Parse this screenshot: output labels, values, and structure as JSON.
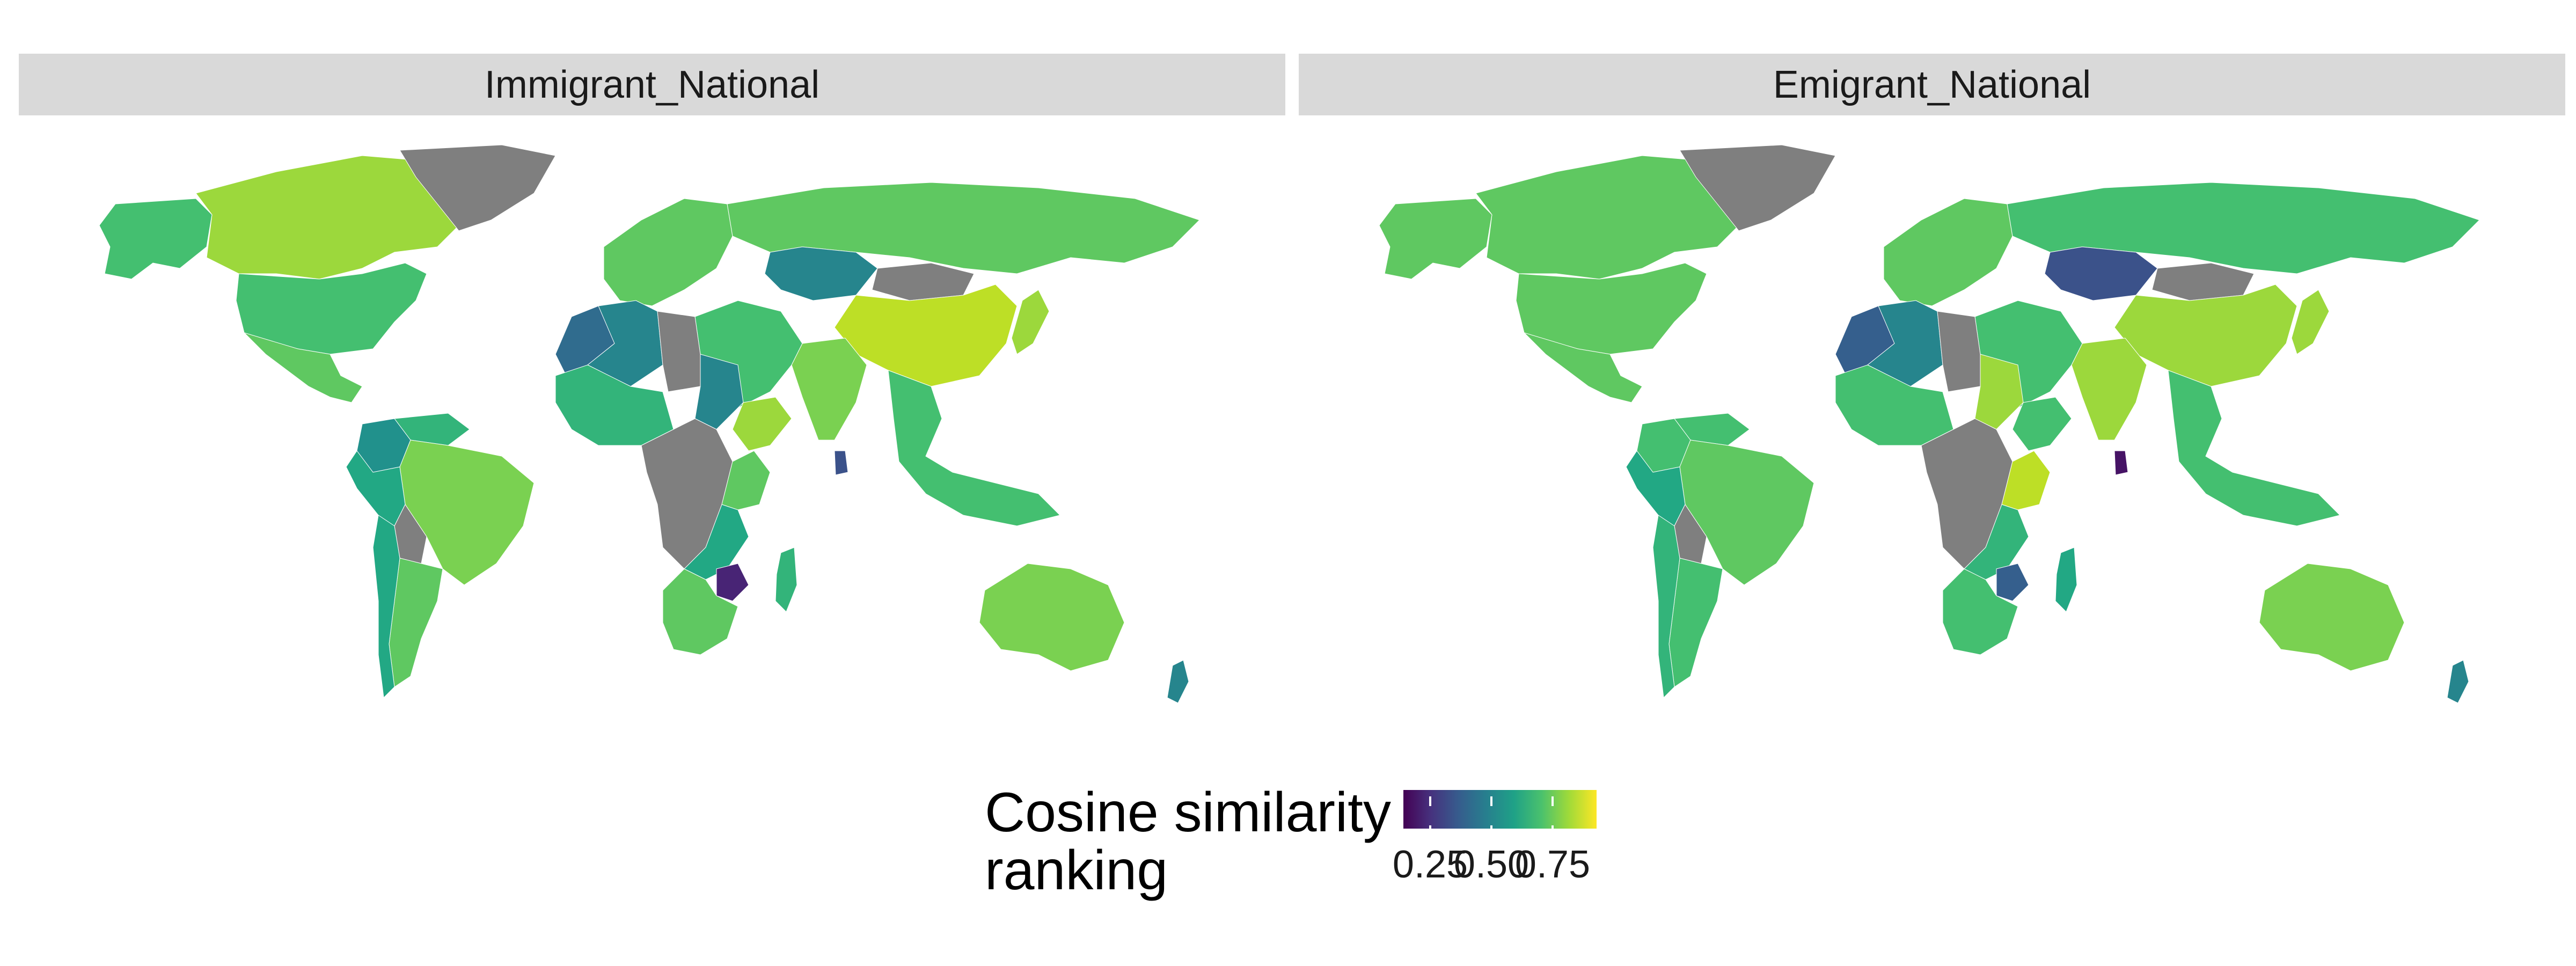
{
  "panels": [
    {
      "title": "Immigrant_National"
    },
    {
      "title": "Emigrant_National"
    }
  ],
  "legend": {
    "title_line1": "Cosine similarity",
    "title_line2": "ranking",
    "ticks": [
      "0.25",
      "0.50",
      "0.75"
    ],
    "scale": "viridis",
    "missing_color": "#7f7f7f"
  },
  "colors": {
    "low": "#440154",
    "mid": "#21918c",
    "high": "#fde725",
    "na": "#7f7f7f"
  },
  "chart_data": [
    {
      "type": "choropleth",
      "title": "Immigrant_National",
      "regions": [
        {
          "name": "Canada",
          "value": 0.85
        },
        {
          "name": "Alaska",
          "value": 0.7
        },
        {
          "name": "Greenland",
          "value": null
        },
        {
          "name": "United States",
          "value": 0.7
        },
        {
          "name": "Mexico",
          "value": 0.75
        },
        {
          "name": "Colombia",
          "value": 0.5
        },
        {
          "name": "Venezuela",
          "value": 0.65
        },
        {
          "name": "Brazil",
          "value": 0.8
        },
        {
          "name": "Peru",
          "value": 0.6
        },
        {
          "name": "Bolivia",
          "value": null
        },
        {
          "name": "Argentina",
          "value": 0.75
        },
        {
          "name": "Chile",
          "value": 0.6
        },
        {
          "name": "Europe",
          "value": 0.75
        },
        {
          "name": "Russia",
          "value": 0.75
        },
        {
          "name": "Kazakhstan",
          "value": 0.45
        },
        {
          "name": "Mongolia",
          "value": null
        },
        {
          "name": "China",
          "value": 0.9
        },
        {
          "name": "India",
          "value": 0.8
        },
        {
          "name": "Japan",
          "value": 0.85
        },
        {
          "name": "Southeast Asia",
          "value": 0.7
        },
        {
          "name": "Middle East",
          "value": 0.7
        },
        {
          "name": "Morocco",
          "value": 0.35
        },
        {
          "name": "Algeria",
          "value": 0.45
        },
        {
          "name": "Libya",
          "value": null
        },
        {
          "name": "Sudan",
          "value": 0.45
        },
        {
          "name": "West Africa",
          "value": 0.65
        },
        {
          "name": "Central Africa",
          "value": null
        },
        {
          "name": "Ethiopia",
          "value": 0.85
        },
        {
          "name": "Kenya",
          "value": 0.75
        },
        {
          "name": "Zambia",
          "value": 0.6
        },
        {
          "name": "Zimbabwe",
          "value": 0.1
        },
        {
          "name": "South Africa",
          "value": 0.75
        },
        {
          "name": "Madagascar",
          "value": 0.65
        },
        {
          "name": "Australia",
          "value": 0.8
        },
        {
          "name": "New Zealand",
          "value": 0.45
        },
        {
          "name": "Sri Lanka",
          "value": 0.25
        }
      ]
    },
    {
      "type": "choropleth",
      "title": "Emigrant_National",
      "regions": [
        {
          "name": "Canada",
          "value": 0.75
        },
        {
          "name": "Alaska",
          "value": 0.75
        },
        {
          "name": "Greenland",
          "value": null
        },
        {
          "name": "United States",
          "value": 0.75
        },
        {
          "name": "Mexico",
          "value": 0.75
        },
        {
          "name": "Colombia",
          "value": 0.7
        },
        {
          "name": "Venezuela",
          "value": 0.7
        },
        {
          "name": "Brazil",
          "value": 0.75
        },
        {
          "name": "Peru",
          "value": 0.6
        },
        {
          "name": "Bolivia",
          "value": null
        },
        {
          "name": "Argentina",
          "value": 0.7
        },
        {
          "name": "Chile",
          "value": 0.65
        },
        {
          "name": "Europe",
          "value": 0.75
        },
        {
          "name": "Russia",
          "value": 0.7
        },
        {
          "name": "Kazakhstan",
          "value": 0.25
        },
        {
          "name": "Mongolia",
          "value": null
        },
        {
          "name": "China",
          "value": 0.85
        },
        {
          "name": "India",
          "value": 0.85
        },
        {
          "name": "Japan",
          "value": 0.85
        },
        {
          "name": "Southeast Asia",
          "value": 0.7
        },
        {
          "name": "Middle East",
          "value": 0.7
        },
        {
          "name": "Morocco",
          "value": 0.3
        },
        {
          "name": "Algeria",
          "value": 0.45
        },
        {
          "name": "Libya",
          "value": null
        },
        {
          "name": "Sudan",
          "value": 0.85
        },
        {
          "name": "West Africa",
          "value": 0.7
        },
        {
          "name": "Central Africa",
          "value": null
        },
        {
          "name": "Ethiopia",
          "value": 0.7
        },
        {
          "name": "Kenya",
          "value": 0.9
        },
        {
          "name": "Zambia",
          "value": 0.65
        },
        {
          "name": "Zimbabwe",
          "value": 0.3
        },
        {
          "name": "South Africa",
          "value": 0.7
        },
        {
          "name": "Madagascar",
          "value": 0.6
        },
        {
          "name": "Australia",
          "value": 0.8
        },
        {
          "name": "New Zealand",
          "value": 0.45
        },
        {
          "name": "Sri Lanka",
          "value": 0.05
        }
      ]
    }
  ]
}
